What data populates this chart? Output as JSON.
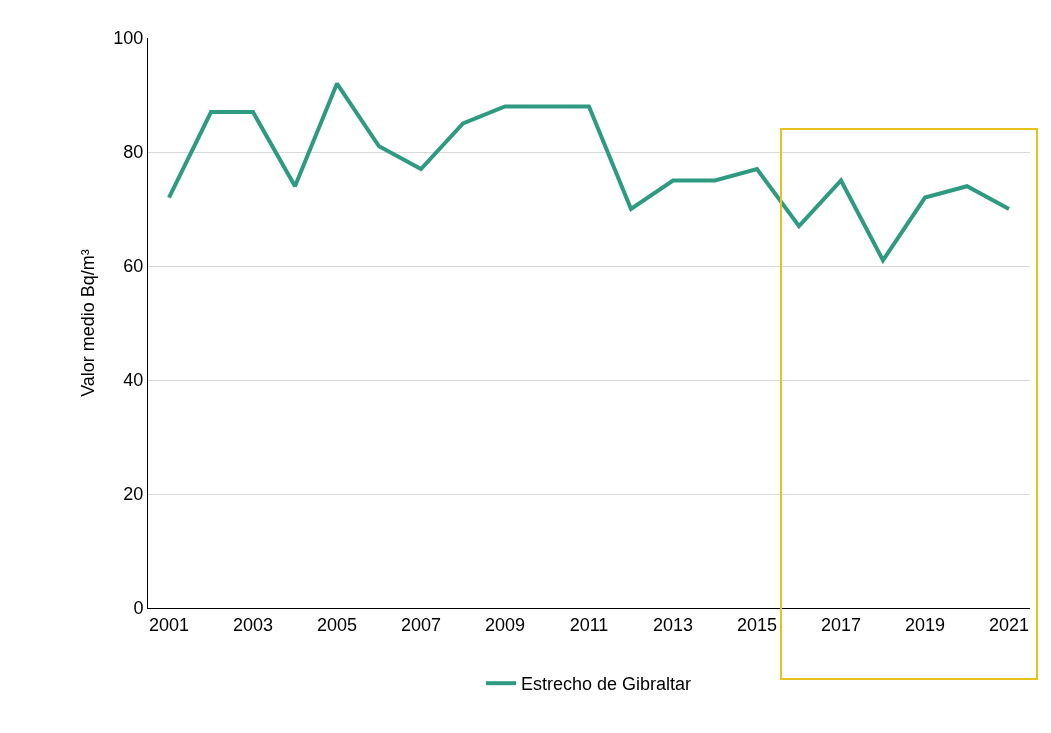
{
  "chart_data": {
    "type": "line",
    "ylabel": "Valor medio Bq/m³",
    "x": [
      2001,
      2002,
      2003,
      2004,
      2005,
      2006,
      2007,
      2008,
      2009,
      2010,
      2011,
      2012,
      2013,
      2014,
      2015,
      2016,
      2017,
      2018,
      2019,
      2020,
      2021
    ],
    "series": [
      {
        "name": "Estrecho de Gibraltar",
        "color": "#2e9a80",
        "values": [
          72,
          87,
          87,
          74,
          92,
          81,
          77,
          85,
          88,
          88,
          88,
          70,
          75,
          75,
          77,
          67,
          75,
          61,
          72,
          74,
          70
        ]
      }
    ],
    "xlim": [
      2000.5,
      2021.5
    ],
    "xticks": [
      2001,
      2003,
      2005,
      2007,
      2009,
      2011,
      2013,
      2015,
      2017,
      2019,
      2021
    ],
    "ylim": [
      0,
      100
    ],
    "yticks": [
      0,
      20,
      40,
      60,
      80,
      100
    ],
    "grid": "y",
    "legend": "bottom",
    "marker": "none",
    "line_style": "solid"
  }
}
